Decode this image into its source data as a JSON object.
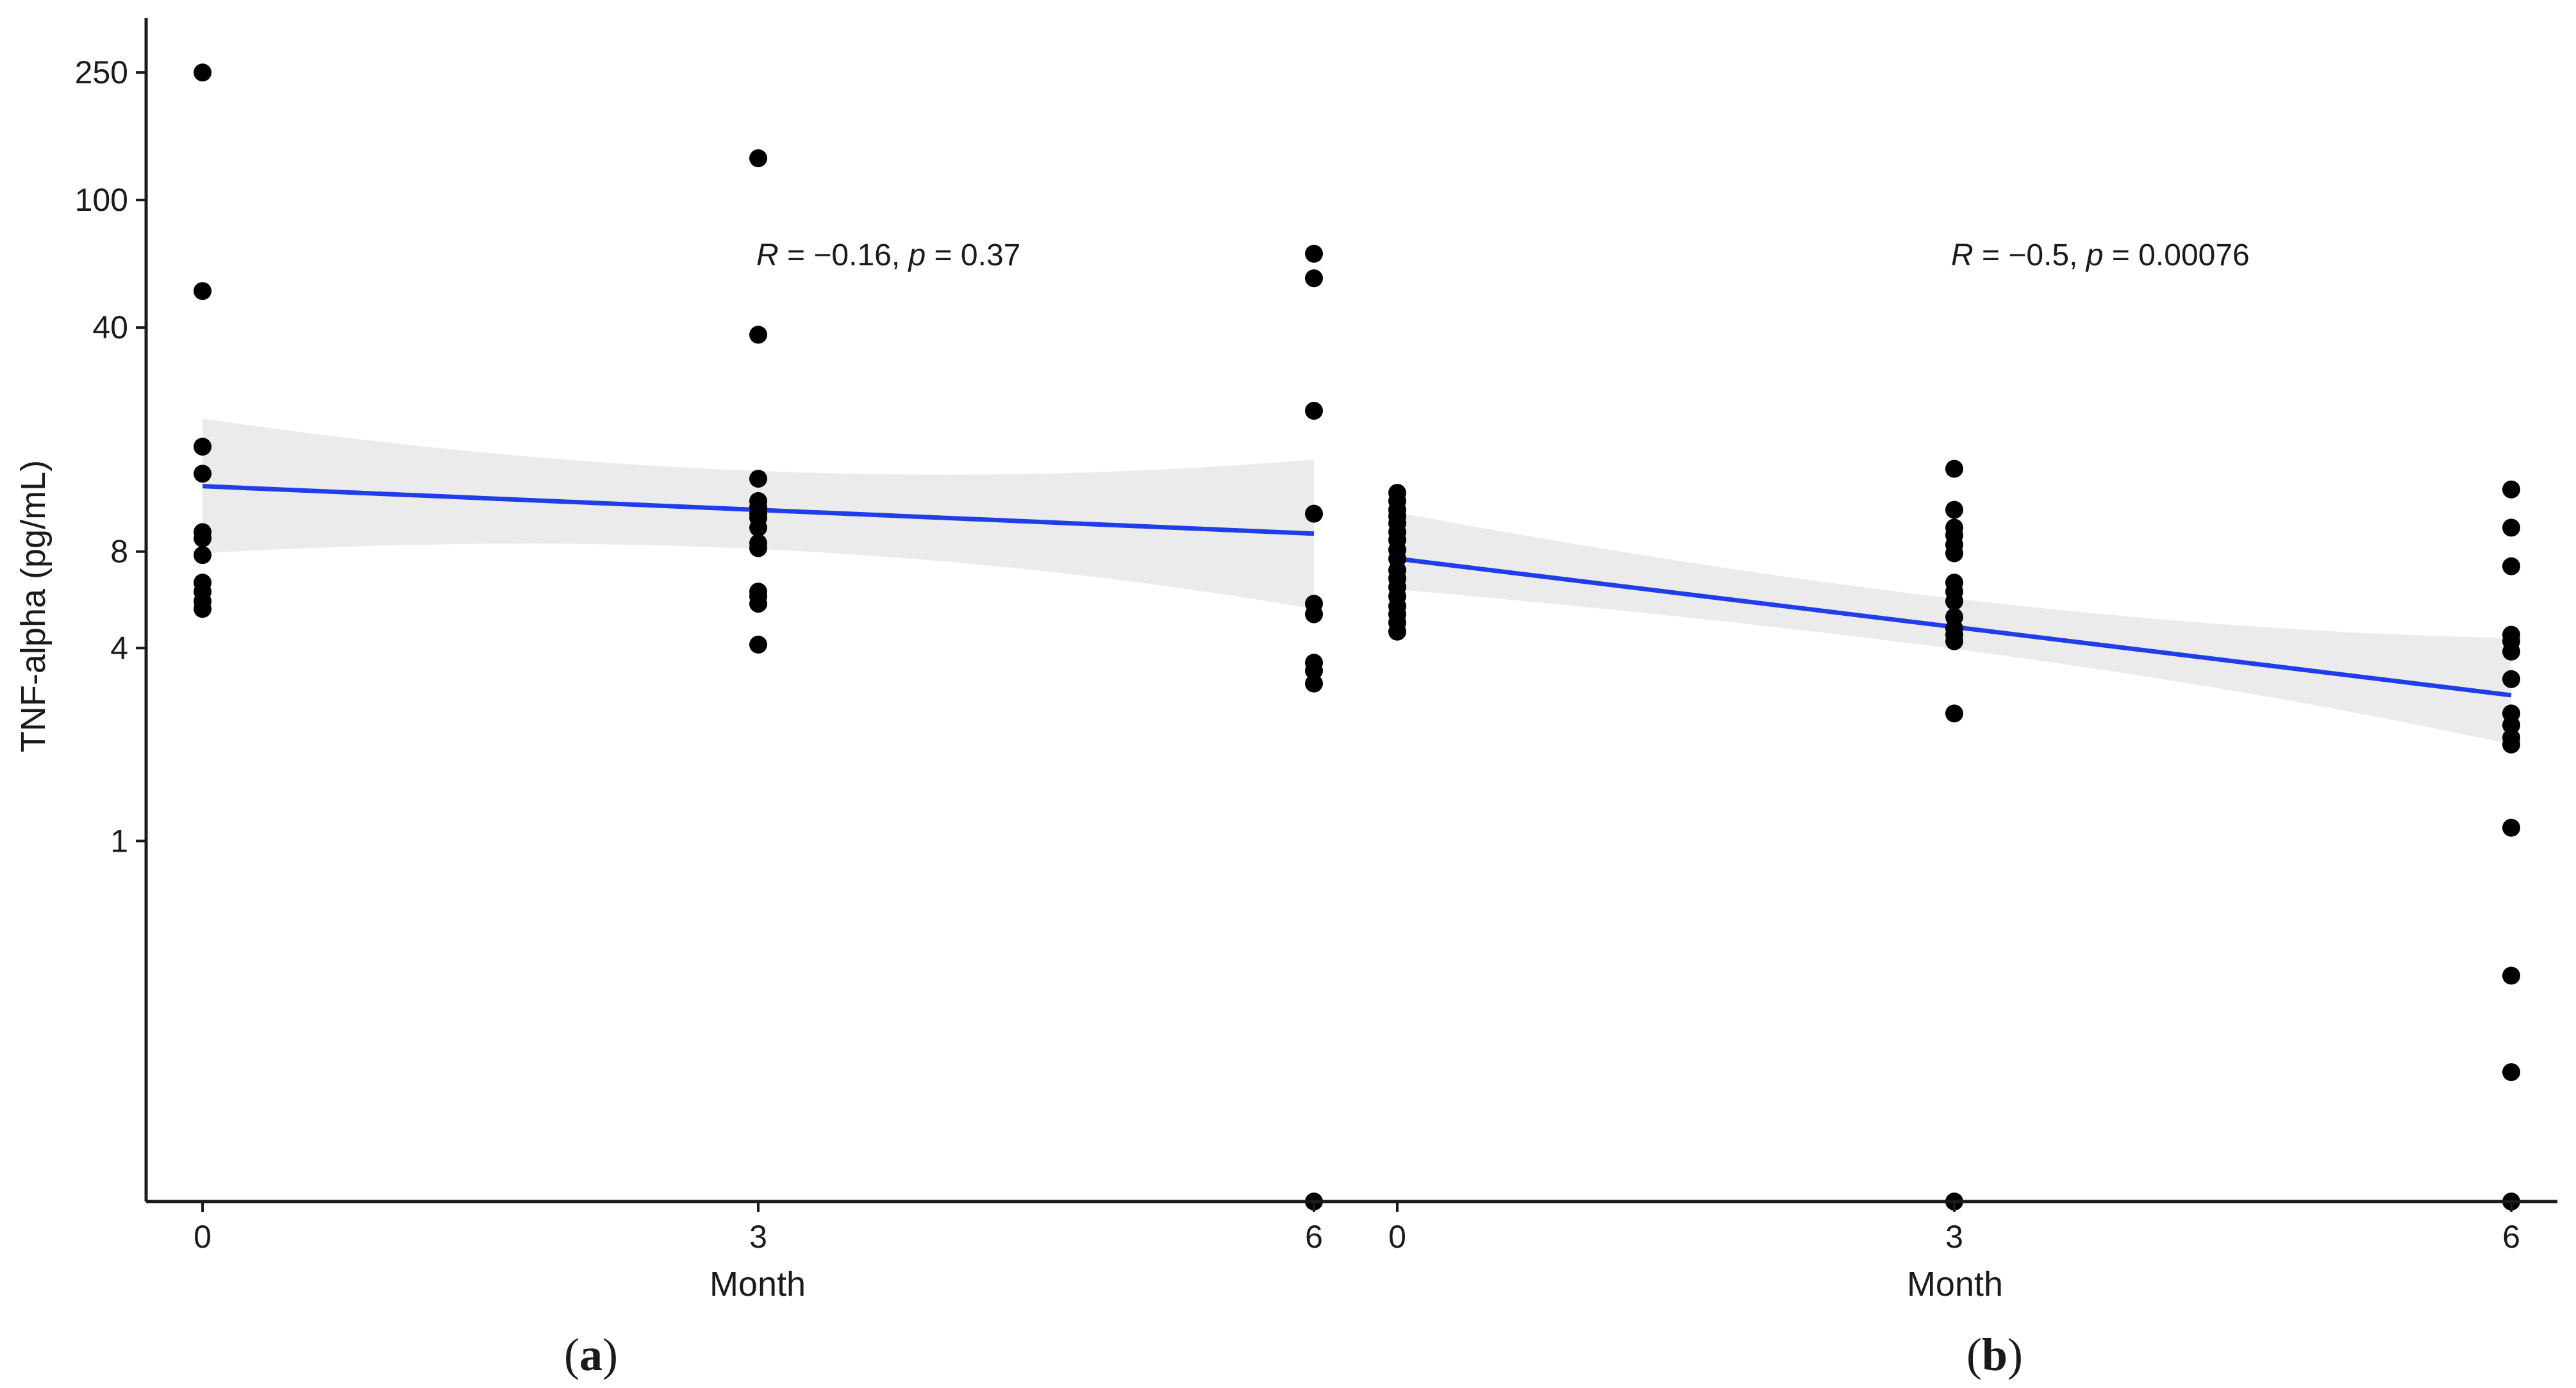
{
  "figure": {
    "ylabel": "TNF-alpha (pg/mL)",
    "yscale": "log",
    "yticks": [
      1,
      4,
      8,
      40,
      100,
      250
    ],
    "ylim": [
      0.075,
      370
    ],
    "colors": {
      "point": "#000000",
      "line": "#1f3ee8",
      "band": "#ebebeb",
      "axis": "#1a1a1a"
    }
  },
  "chart_data": [
    {
      "type": "scatter",
      "panel_label": "a",
      "xlabel": "Month",
      "xticks": [
        0,
        3,
        6
      ],
      "xlim": [
        0,
        6
      ],
      "annotation": {
        "R": "R",
        "p": "p",
        "text_r": " = −0.16, ",
        "text_p": " = 0.37"
      },
      "points": [
        {
          "x": 0,
          "y": 250
        },
        {
          "x": 0,
          "y": 52
        },
        {
          "x": 0,
          "y": 17
        },
        {
          "x": 0,
          "y": 14
        },
        {
          "x": 0,
          "y": 9.2
        },
        {
          "x": 0,
          "y": 8.8
        },
        {
          "x": 0,
          "y": 7.8
        },
        {
          "x": 0,
          "y": 6.4
        },
        {
          "x": 0,
          "y": 6.0
        },
        {
          "x": 0,
          "y": 5.6
        },
        {
          "x": 0,
          "y": 5.3
        },
        {
          "x": 3,
          "y": 135
        },
        {
          "x": 3,
          "y": 38
        },
        {
          "x": 3,
          "y": 13.5
        },
        {
          "x": 3,
          "y": 11.5
        },
        {
          "x": 3,
          "y": 11
        },
        {
          "x": 3,
          "y": 10.5
        },
        {
          "x": 3,
          "y": 10.2
        },
        {
          "x": 3,
          "y": 9.5
        },
        {
          "x": 3,
          "y": 8.5
        },
        {
          "x": 3,
          "y": 8.2
        },
        {
          "x": 3,
          "y": 6.0
        },
        {
          "x": 3,
          "y": 5.8
        },
        {
          "x": 3,
          "y": 5.5
        },
        {
          "x": 3,
          "y": 4.1
        },
        {
          "x": 6,
          "y": 68
        },
        {
          "x": 6,
          "y": 57
        },
        {
          "x": 6,
          "y": 22
        },
        {
          "x": 6,
          "y": 10.5
        },
        {
          "x": 6,
          "y": 5.5
        },
        {
          "x": 6,
          "y": 5.1
        },
        {
          "x": 6,
          "y": 3.6
        },
        {
          "x": 6,
          "y": 3.4
        },
        {
          "x": 6,
          "y": 3.1
        },
        {
          "x": 6,
          "y": 0.075
        }
      ],
      "fit": {
        "y0": 12.8,
        "y1": 9.1,
        "ci_lower": [
          7.9,
          5.3
        ],
        "ci_upper": [
          20.8,
          15.5
        ]
      }
    },
    {
      "type": "scatter",
      "panel_label": "b",
      "xlabel": "Month",
      "xticks": [
        0,
        3,
        6
      ],
      "xlim": [
        0,
        6
      ],
      "annotation": {
        "R": "R",
        "p": "p",
        "text_r": " = −0.5, ",
        "text_p": " = 0.00076"
      },
      "points": [
        {
          "x": 0,
          "y": 12.2
        },
        {
          "x": 0,
          "y": 11.5
        },
        {
          "x": 0,
          "y": 10.8
        },
        {
          "x": 0,
          "y": 10.3
        },
        {
          "x": 0,
          "y": 9.8
        },
        {
          "x": 0,
          "y": 9.2
        },
        {
          "x": 0,
          "y": 8.7
        },
        {
          "x": 0,
          "y": 8.1
        },
        {
          "x": 0,
          "y": 7.6
        },
        {
          "x": 0,
          "y": 7.0
        },
        {
          "x": 0,
          "y": 6.6
        },
        {
          "x": 0,
          "y": 6.2
        },
        {
          "x": 0,
          "y": 5.8
        },
        {
          "x": 0,
          "y": 5.4
        },
        {
          "x": 0,
          "y": 5.1
        },
        {
          "x": 0,
          "y": 4.8
        },
        {
          "x": 0,
          "y": 4.5
        },
        {
          "x": 3,
          "y": 14.5
        },
        {
          "x": 3,
          "y": 10.8
        },
        {
          "x": 3,
          "y": 9.5
        },
        {
          "x": 3,
          "y": 9.0
        },
        {
          "x": 3,
          "y": 8.4
        },
        {
          "x": 3,
          "y": 7.9
        },
        {
          "x": 3,
          "y": 6.4
        },
        {
          "x": 3,
          "y": 6.0
        },
        {
          "x": 3,
          "y": 5.6
        },
        {
          "x": 3,
          "y": 5.0
        },
        {
          "x": 3,
          "y": 4.6
        },
        {
          "x": 3,
          "y": 4.4
        },
        {
          "x": 3,
          "y": 4.2
        },
        {
          "x": 3,
          "y": 2.5
        },
        {
          "x": 3,
          "y": 0.075
        },
        {
          "x": 6,
          "y": 12.5
        },
        {
          "x": 6,
          "y": 9.5
        },
        {
          "x": 6,
          "y": 7.2
        },
        {
          "x": 6,
          "y": 4.4
        },
        {
          "x": 6,
          "y": 4.2
        },
        {
          "x": 6,
          "y": 3.9
        },
        {
          "x": 6,
          "y": 3.2
        },
        {
          "x": 6,
          "y": 2.5
        },
        {
          "x": 6,
          "y": 2.3
        },
        {
          "x": 6,
          "y": 2.1
        },
        {
          "x": 6,
          "y": 2.0
        },
        {
          "x": 6,
          "y": 1.1
        },
        {
          "x": 6,
          "y": 0.38
        },
        {
          "x": 6,
          "y": 0.19
        },
        {
          "x": 6,
          "y": 0.075
        }
      ],
      "fit": {
        "y0": 7.6,
        "y1": 2.85,
        "ci_lower": [
          6.1,
          2.0
        ],
        "ci_upper": [
          10.6,
          4.3
        ]
      }
    }
  ]
}
